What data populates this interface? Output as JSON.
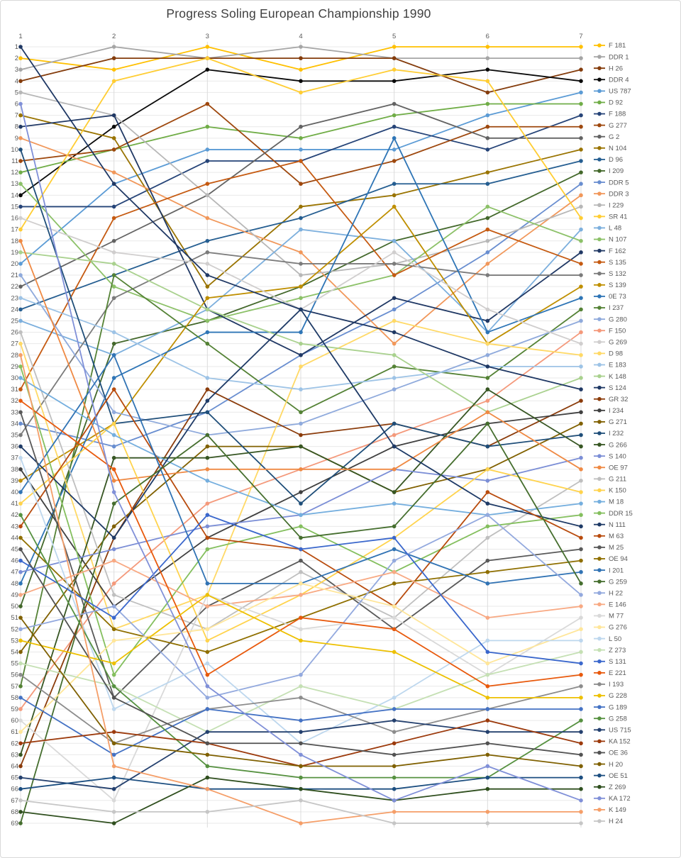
{
  "title": "Progress Soling European Championship 1990",
  "chart_data": {
    "type": "line",
    "subtype": "bump-rank-progress",
    "title": "Progress Soling European Championship 1990",
    "xlabel": "",
    "ylabel": "",
    "x_axis_position": "top",
    "y_axis_inverted": true,
    "grid": true,
    "legend_position": "right",
    "ylim": [
      1,
      69
    ],
    "x": [
      1,
      2,
      3,
      4,
      5,
      6,
      7
    ],
    "x_ticks": [
      "1",
      "2",
      "3",
      "4",
      "5",
      "6",
      "7"
    ],
    "y_ticks": [
      "1",
      "2",
      "3",
      "4",
      "5",
      "6",
      "7",
      "8",
      "9",
      "10",
      "11",
      "12",
      "13",
      "14",
      "15",
      "16",
      "17",
      "18",
      "19",
      "20",
      "21",
      "22",
      "23",
      "24",
      "25",
      "26",
      "27",
      "28",
      "29",
      "30",
      "31",
      "32",
      "33",
      "34",
      "35",
      "36",
      "37",
      "38",
      "39",
      "40",
      "41",
      "42",
      "43",
      "44",
      "45",
      "46",
      "47",
      "48",
      "49",
      "50",
      "51",
      "52",
      "53",
      "54",
      "55",
      "56",
      "57",
      "58",
      "59",
      "60",
      "61",
      "62",
      "63",
      "64",
      "65",
      "66",
      "67",
      "68",
      "69"
    ],
    "series": [
      {
        "name": "F 181",
        "color": "#FFC000",
        "values": [
          2,
          3,
          1,
          3,
          1,
          1,
          1
        ]
      },
      {
        "name": "DDR 1",
        "color": "#A5A5A5",
        "values": [
          3,
          1,
          2,
          1,
          2,
          2,
          2
        ]
      },
      {
        "name": "H 26",
        "color": "#843C0C",
        "values": [
          4,
          2,
          2,
          2,
          2,
          5,
          3
        ]
      },
      {
        "name": "DDR 4",
        "color": "#0A0A0A",
        "values": [
          14,
          8,
          3,
          4,
          4,
          3,
          4
        ]
      },
      {
        "name": "US 787",
        "color": "#5B9BD5",
        "values": [
          20,
          13,
          10,
          10,
          10,
          7,
          5
        ]
      },
      {
        "name": "D 92",
        "color": "#70AD47",
        "values": [
          12,
          10,
          8,
          9,
          7,
          6,
          6
        ]
      },
      {
        "name": "F 188",
        "color": "#264478",
        "values": [
          15,
          15,
          11,
          11,
          8,
          10,
          7
        ]
      },
      {
        "name": "G 277",
        "color": "#9E480E",
        "values": [
          11,
          10,
          6,
          13,
          11,
          8,
          8
        ]
      },
      {
        "name": "G 2",
        "color": "#636363",
        "values": [
          22,
          18,
          14,
          8,
          6,
          9,
          9
        ]
      },
      {
        "name": "N 104",
        "color": "#997300",
        "values": [
          7,
          9,
          22,
          15,
          14,
          12,
          10
        ]
      },
      {
        "name": "D 96",
        "color": "#255E91",
        "values": [
          24,
          21,
          18,
          16,
          13,
          13,
          11
        ]
      },
      {
        "name": "I 209",
        "color": "#43682B",
        "values": [
          50,
          27,
          25,
          22,
          18,
          16,
          12
        ]
      },
      {
        "name": "DDR 5",
        "color": "#698ED0",
        "values": [
          34,
          36,
          33,
          28,
          24,
          19,
          13
        ]
      },
      {
        "name": "DDR 3",
        "color": "#F1975A",
        "values": [
          9,
          12,
          16,
          19,
          27,
          20,
          14
        ]
      },
      {
        "name": "I 229",
        "color": "#B7B7B7",
        "values": [
          5,
          7,
          14,
          21,
          20,
          18,
          15
        ]
      },
      {
        "name": "SR 41",
        "color": "#FFCD33",
        "values": [
          17,
          4,
          2,
          5,
          3,
          4,
          16
        ]
      },
      {
        "name": "L 48",
        "color": "#7CAFDD",
        "values": [
          25,
          28,
          24,
          17,
          18,
          26,
          17
        ]
      },
      {
        "name": "N 107",
        "color": "#8CC168",
        "values": [
          13,
          22,
          25,
          23,
          21,
          15,
          18
        ]
      },
      {
        "name": "F 162",
        "color": "#203864",
        "values": [
          8,
          7,
          24,
          28,
          23,
          25,
          19
        ]
      },
      {
        "name": "S 135",
        "color": "#C55A11",
        "values": [
          31,
          16,
          13,
          11,
          21,
          17,
          20
        ]
      },
      {
        "name": "S 132",
        "color": "#7B7B7B",
        "values": [
          35,
          23,
          19,
          20,
          20,
          21,
          21
        ]
      },
      {
        "name": "S 139",
        "color": "#BF8F00",
        "values": [
          39,
          34,
          23,
          22,
          15,
          27,
          22
        ]
      },
      {
        "name": "0E 73",
        "color": "#2E75B6",
        "values": [
          48,
          30,
          26,
          26,
          9,
          26,
          23
        ]
      },
      {
        "name": "I 237",
        "color": "#548235",
        "values": [
          57,
          21,
          27,
          33,
          29,
          30,
          24
        ]
      },
      {
        "name": "G 280",
        "color": "#8FAADC",
        "values": [
          21,
          33,
          35,
          34,
          31,
          28,
          25
        ]
      },
      {
        "name": "F 150",
        "color": "#F4997B",
        "values": [
          59,
          48,
          41,
          38,
          35,
          32,
          26
        ]
      },
      {
        "name": "G 269",
        "color": "#D0CECE",
        "values": [
          16,
          19,
          20,
          24,
          19,
          24,
          27
        ]
      },
      {
        "name": "D 98",
        "color": "#FFD966",
        "values": [
          27,
          52,
          49,
          29,
          25,
          27,
          28
        ]
      },
      {
        "name": "E 183",
        "color": "#9DC3E6",
        "values": [
          23,
          26,
          30,
          31,
          30,
          29,
          29
        ]
      },
      {
        "name": "K 148",
        "color": "#A9D18E",
        "values": [
          19,
          20,
          24,
          27,
          28,
          33,
          30
        ]
      },
      {
        "name": "S 124",
        "color": "#1F3864",
        "values": [
          1,
          13,
          21,
          24,
          26,
          29,
          31
        ]
      },
      {
        "name": "GR 32",
        "color": "#8B3C0B",
        "values": [
          64,
          44,
          31,
          35,
          34,
          36,
          32
        ]
      },
      {
        "name": "I 234",
        "color": "#404040",
        "values": [
          38,
          50,
          44,
          40,
          36,
          34,
          33
        ]
      },
      {
        "name": "G 271",
        "color": "#806000",
        "values": [
          54,
          43,
          36,
          36,
          40,
          38,
          34
        ]
      },
      {
        "name": "I 232",
        "color": "#1F4E79",
        "values": [
          10,
          34,
          33,
          41,
          34,
          36,
          35
        ]
      },
      {
        "name": "G 266",
        "color": "#375623",
        "values": [
          63,
          37,
          37,
          36,
          40,
          31,
          36
        ]
      },
      {
        "name": "S 140",
        "color": "#7B8ED6",
        "values": [
          47,
          45,
          43,
          42,
          38,
          39,
          37
        ]
      },
      {
        "name": "OE 97",
        "color": "#EF8943",
        "values": [
          18,
          39,
          38,
          38,
          38,
          33,
          38
        ]
      },
      {
        "name": "G 211",
        "color": "#BFBFBF",
        "values": [
          26,
          49,
          52,
          47,
          51,
          44,
          39
        ]
      },
      {
        "name": "K 150",
        "color": "#FFD34D",
        "values": [
          41,
          34,
          53,
          49,
          44,
          38,
          40
        ]
      },
      {
        "name": "M 18",
        "color": "#74AEDE",
        "values": [
          30,
          35,
          39,
          42,
          41,
          42,
          41
        ]
      },
      {
        "name": "DDR 15",
        "color": "#84BF5E",
        "values": [
          29,
          56,
          45,
          43,
          47,
          43,
          42
        ]
      },
      {
        "name": "N 111",
        "color": "#1E3A66",
        "values": [
          36,
          44,
          32,
          24,
          36,
          41,
          43
        ]
      },
      {
        "name": "M 63",
        "color": "#B84B0D",
        "values": [
          43,
          31,
          44,
          45,
          50,
          40,
          44
        ]
      },
      {
        "name": "M 25",
        "color": "#595959",
        "values": [
          33,
          58,
          50,
          46,
          52,
          46,
          45
        ]
      },
      {
        "name": "OE 94",
        "color": "#8F6F00",
        "values": [
          44,
          52,
          54,
          51,
          48,
          47,
          46
        ]
      },
      {
        "name": "I 201",
        "color": "#3173B4",
        "values": [
          40,
          28,
          48,
          48,
          45,
          48,
          47
        ]
      },
      {
        "name": "G 259",
        "color": "#456E2E",
        "values": [
          69,
          41,
          35,
          44,
          43,
          34,
          48
        ]
      },
      {
        "name": "H 22",
        "color": "#93A9DE",
        "values": [
          52,
          50,
          58,
          56,
          46,
          42,
          49
        ]
      },
      {
        "name": "E 146",
        "color": "#F8A983",
        "values": [
          49,
          46,
          50,
          49,
          47,
          51,
          50
        ]
      },
      {
        "name": "M 77",
        "color": "#D9D9D9",
        "values": [
          60,
          67,
          49,
          52,
          51,
          56,
          51
        ]
      },
      {
        "name": "G 276",
        "color": "#FFE699",
        "values": [
          61,
          53,
          52,
          48,
          50,
          55,
          52
        ]
      },
      {
        "name": "L 50",
        "color": "#BDD7EE",
        "values": [
          37,
          59,
          55,
          62,
          58,
          53,
          53
        ]
      },
      {
        "name": "Z 273",
        "color": "#C5E0B4",
        "values": [
          55,
          57,
          61,
          57,
          59,
          56,
          54
        ]
      },
      {
        "name": "S 131",
        "color": "#3A67CC",
        "values": [
          46,
          51,
          42,
          45,
          44,
          54,
          55
        ]
      },
      {
        "name": "E 221",
        "color": "#E8590C",
        "values": [
          32,
          38,
          56,
          51,
          52,
          57,
          56
        ]
      },
      {
        "name": "I 193",
        "color": "#8C8C8C",
        "values": [
          56,
          62,
          59,
          58,
          61,
          59,
          57
        ]
      },
      {
        "name": "G 228",
        "color": "#EDC000",
        "values": [
          53,
          55,
          49,
          53,
          54,
          58,
          58
        ]
      },
      {
        "name": "G 189",
        "color": "#4472C4",
        "values": [
          58,
          63,
          59,
          60,
          59,
          59,
          59
        ]
      },
      {
        "name": "G 258",
        "color": "#569140",
        "values": [
          42,
          57,
          64,
          65,
          65,
          65,
          60
        ]
      },
      {
        "name": "US 715",
        "color": "#24406E",
        "values": [
          65,
          66,
          61,
          61,
          60,
          61,
          61
        ]
      },
      {
        "name": "KA 152",
        "color": "#9C3A0C",
        "values": [
          62,
          61,
          62,
          64,
          62,
          60,
          62
        ]
      },
      {
        "name": "OE 36",
        "color": "#525252",
        "values": [
          45,
          58,
          62,
          62,
          63,
          62,
          63
        ]
      },
      {
        "name": "H 20",
        "color": "#7F6000",
        "values": [
          51,
          62,
          63,
          64,
          64,
          63,
          64
        ]
      },
      {
        "name": "OE 51",
        "color": "#1C4E80",
        "values": [
          66,
          65,
          66,
          66,
          66,
          65,
          65
        ]
      },
      {
        "name": "Z 269",
        "color": "#2F4F1E",
        "values": [
          68,
          69,
          65,
          66,
          67,
          66,
          66
        ]
      },
      {
        "name": "KA 172",
        "color": "#8090D8",
        "values": [
          6,
          40,
          57,
          63,
          67,
          64,
          67
        ]
      },
      {
        "name": "K 149",
        "color": "#F59E68",
        "values": [
          28,
          64,
          66,
          69,
          68,
          68,
          68
        ]
      },
      {
        "name": "H 24",
        "color": "#C6C6C6",
        "values": [
          67,
          68,
          68,
          67,
          69,
          69,
          69
        ]
      }
    ]
  }
}
